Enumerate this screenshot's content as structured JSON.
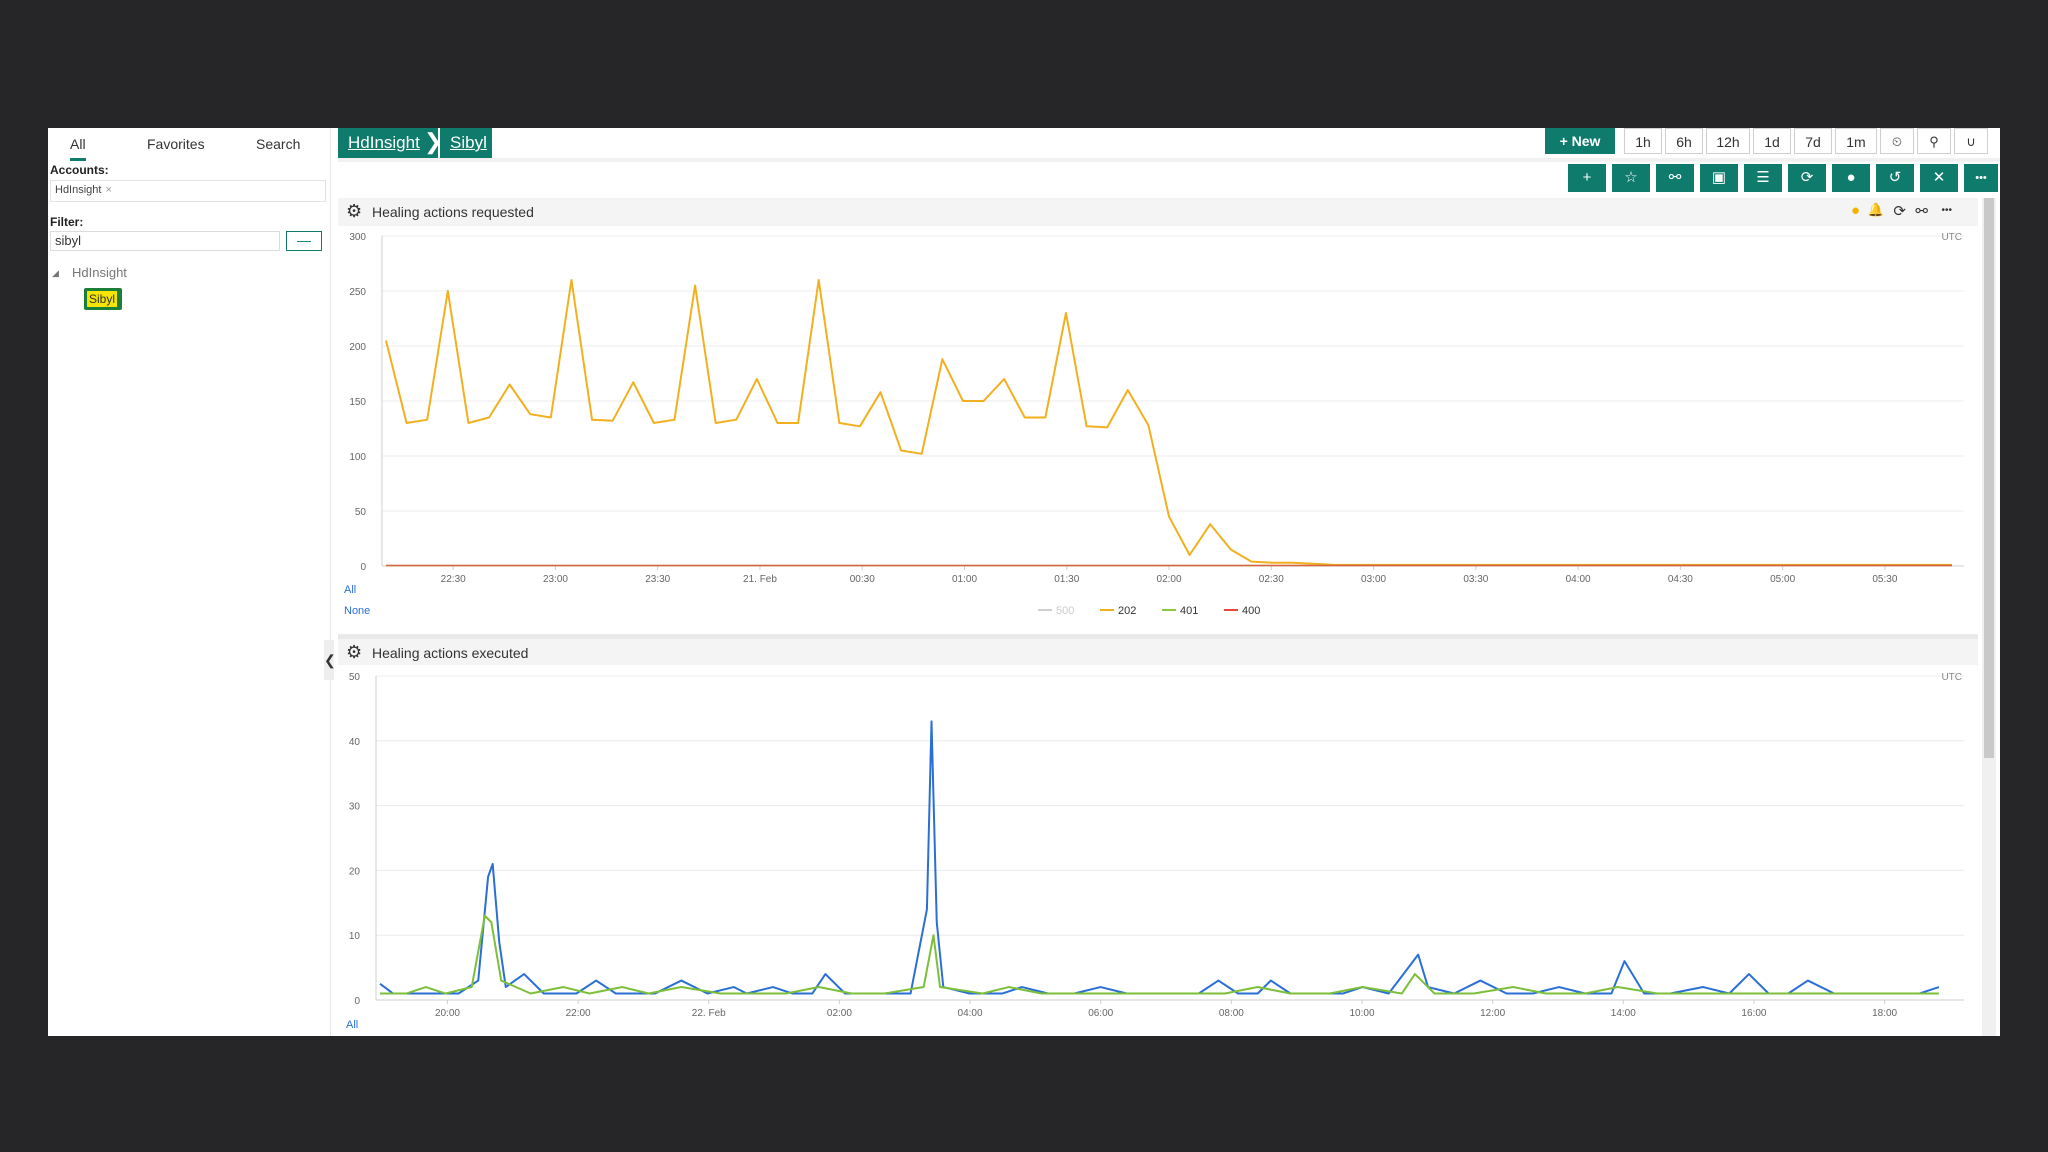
{
  "left_panel": {
    "tabs": [
      "All",
      "Favorites",
      "Search"
    ],
    "accounts_label": "Accounts:",
    "account_chip": "HdInsight",
    "chip_close": "×",
    "filter_label": "Filter:",
    "filter_value": "sibyl",
    "filter_button": "—",
    "tree_caret": "◢",
    "tree_parent": "HdInsight",
    "tree_child": "Sibyl",
    "collapse_glyph": "❮"
  },
  "breadcrumb": {
    "items": [
      "HdInsight",
      "Sibyl"
    ],
    "separator": "❯"
  },
  "toolbar": {
    "new_label": "+ New",
    "ranges": [
      "1h",
      "6h",
      "12h",
      "1d",
      "7d",
      "1m"
    ],
    "icons": [
      {
        "name": "clock-icon",
        "glyph": "⏲"
      },
      {
        "name": "pin-icon",
        "glyph": "⚲"
      },
      {
        "name": "magnet-icon",
        "glyph": "∪"
      }
    ],
    "actions": [
      {
        "name": "add-icon",
        "glyph": "+"
      },
      {
        "name": "star-icon",
        "glyph": "☆"
      },
      {
        "name": "link-icon",
        "glyph": "⚯"
      },
      {
        "name": "save-icon",
        "glyph": "▣"
      },
      {
        "name": "filter-icon",
        "glyph": "☰"
      },
      {
        "name": "refresh-icon",
        "glyph": "⟳"
      },
      {
        "name": "record-icon",
        "glyph": "●"
      },
      {
        "name": "undo-icon",
        "glyph": "↺"
      },
      {
        "name": "collapse-icon",
        "glyph": "✕"
      },
      {
        "name": "more-icon",
        "glyph": "•••"
      }
    ]
  },
  "panel_head_icons": [
    {
      "name": "warning-icon",
      "glyph": "●"
    },
    {
      "name": "bell-icon",
      "glyph": "🔔"
    },
    {
      "name": "refresh-icon",
      "glyph": "⟳"
    },
    {
      "name": "link-icon",
      "glyph": "⚯"
    },
    {
      "name": "more-icon",
      "glyph": "•••"
    }
  ],
  "panel_gear": "⚙",
  "panels": [
    {
      "title": "Healing actions requested",
      "tz": "UTC",
      "legend_all": "All",
      "legend_none": "None"
    },
    {
      "title": "Healing actions executed",
      "tz": "UTC",
      "legend_all": "All"
    }
  ],
  "colors": {
    "accent": "#0f7b6c",
    "s202": "#f2b01e",
    "s401": "#8dc63f",
    "s400": "#e8463c",
    "s500": "#cfcfcf",
    "blue": "#2a6fd6",
    "green": "#7cbf3a"
  },
  "chart_data": [
    {
      "type": "line",
      "title": "Healing actions requested",
      "ylim": [
        0,
        300
      ],
      "yticks": [
        0,
        50,
        100,
        150,
        200,
        250,
        300
      ],
      "xticks": [
        "22:30",
        "23:00",
        "23:30",
        "21. Feb",
        "00:30",
        "01:00",
        "01:30",
        "02:00",
        "02:30",
        "03:00",
        "03:30",
        "04:00",
        "04:30",
        "05:00",
        "05:30"
      ],
      "xrange": [
        0,
        76
      ],
      "series": [
        {
          "name": "500",
          "color": "#cfcfcf",
          "values": []
        },
        {
          "name": "202",
          "color": "#f2b01e",
          "values": [
            205,
            130,
            133,
            250,
            130,
            135,
            165,
            138,
            135,
            260,
            133,
            132,
            167,
            130,
            133,
            255,
            130,
            133,
            170,
            130,
            130,
            260,
            130,
            127,
            158,
            105,
            102,
            188,
            150,
            150,
            170,
            135,
            135,
            230,
            127,
            126,
            160,
            128,
            45,
            10,
            38,
            15,
            4,
            3,
            3,
            2,
            1,
            1,
            1,
            1,
            1,
            1,
            1,
            1,
            1,
            1,
            1,
            1,
            1,
            1,
            1,
            1,
            1,
            1,
            1,
            1,
            1,
            1,
            1,
            1,
            1,
            1,
            1,
            1,
            1,
            1,
            1
          ]
        },
        {
          "name": "401",
          "color": "#8dc63f",
          "values": []
        },
        {
          "name": "400",
          "color": "#e8463c",
          "values": []
        }
      ]
    },
    {
      "type": "line",
      "title": "Healing actions executed",
      "ylim": [
        0,
        50
      ],
      "yticks": [
        0,
        10,
        20,
        30,
        40,
        50
      ],
      "xticks": [
        "20:00",
        "22:00",
        "22. Feb",
        "02:00",
        "04:00",
        "06:00",
        "08:00",
        "10:00",
        "12:00",
        "14:00",
        "16:00",
        "18:00"
      ],
      "xrange": [
        0,
        24
      ],
      "series": [
        {
          "name": "blue",
          "color": "#2a6fd6",
          "points": [
            [
              0,
              2.5
            ],
            [
              0.2,
              1
            ],
            [
              1.2,
              1
            ],
            [
              1.5,
              3
            ],
            [
              1.65,
              19
            ],
            [
              1.72,
              21
            ],
            [
              1.82,
              9
            ],
            [
              1.92,
              2
            ],
            [
              2.2,
              4
            ],
            [
              2.5,
              1
            ],
            [
              3,
              1
            ],
            [
              3.3,
              3
            ],
            [
              3.6,
              1
            ],
            [
              4.2,
              1
            ],
            [
              4.6,
              3
            ],
            [
              5,
              1
            ],
            [
              5.4,
              2
            ],
            [
              5.6,
              1
            ],
            [
              6,
              2
            ],
            [
              6.3,
              1
            ],
            [
              6.6,
              1
            ],
            [
              6.8,
              4
            ],
            [
              7.1,
              1
            ],
            [
              7.5,
              1
            ],
            [
              7.8,
              1
            ],
            [
              8.1,
              1
            ],
            [
              8.35,
              14
            ],
            [
              8.42,
              43
            ],
            [
              8.5,
              12
            ],
            [
              8.6,
              2
            ],
            [
              9,
              1
            ],
            [
              9.3,
              1
            ],
            [
              9.5,
              1
            ],
            [
              9.8,
              2
            ],
            [
              10.2,
              1
            ],
            [
              10.6,
              1
            ],
            [
              11,
              2
            ],
            [
              11.4,
              1
            ],
            [
              12,
              1
            ],
            [
              12.5,
              1
            ],
            [
              12.8,
              3
            ],
            [
              13.1,
              1
            ],
            [
              13.4,
              1
            ],
            [
              13.6,
              3
            ],
            [
              13.9,
              1
            ],
            [
              14.3,
              1
            ],
            [
              14.7,
              1
            ],
            [
              15,
              2
            ],
            [
              15.4,
              1
            ],
            [
              15.7,
              5
            ],
            [
              15.85,
              7
            ],
            [
              16,
              2
            ],
            [
              16.4,
              1
            ],
            [
              16.8,
              3
            ],
            [
              17.2,
              1
            ],
            [
              17.6,
              1
            ],
            [
              18,
              2
            ],
            [
              18.4,
              1
            ],
            [
              18.8,
              1
            ],
            [
              19,
              6
            ],
            [
              19.3,
              1
            ],
            [
              19.7,
              1
            ],
            [
              20.2,
              2
            ],
            [
              20.6,
              1
            ],
            [
              20.9,
              4
            ],
            [
              21.2,
              1
            ],
            [
              21.5,
              1
            ],
            [
              21.8,
              3
            ],
            [
              22.2,
              1
            ],
            [
              22.7,
              1
            ],
            [
              23.1,
              1
            ],
            [
              23.5,
              1
            ],
            [
              23.8,
              2
            ]
          ]
        },
        {
          "name": "green",
          "color": "#7cbf3a",
          "points": [
            [
              0,
              1
            ],
            [
              0.4,
              1
            ],
            [
              0.7,
              2
            ],
            [
              1,
              1
            ],
            [
              1.4,
              2
            ],
            [
              1.6,
              13
            ],
            [
              1.7,
              12
            ],
            [
              1.85,
              3
            ],
            [
              2.3,
              1
            ],
            [
              2.8,
              2
            ],
            [
              3.2,
              1
            ],
            [
              3.7,
              2
            ],
            [
              4.1,
              1
            ],
            [
              4.6,
              2
            ],
            [
              5.2,
              1
            ],
            [
              5.8,
              1
            ],
            [
              6.2,
              1
            ],
            [
              6.7,
              2
            ],
            [
              7.2,
              1
            ],
            [
              7.7,
              1
            ],
            [
              8.3,
              2
            ],
            [
              8.45,
              10
            ],
            [
              8.55,
              2
            ],
            [
              9.2,
              1
            ],
            [
              9.6,
              2
            ],
            [
              10.1,
              1
            ],
            [
              10.7,
              1
            ],
            [
              11.3,
              1
            ],
            [
              11.8,
              1
            ],
            [
              12.4,
              1
            ],
            [
              12.9,
              1
            ],
            [
              13.4,
              2
            ],
            [
              13.9,
              1
            ],
            [
              14.5,
              1
            ],
            [
              15,
              2
            ],
            [
              15.6,
              1
            ],
            [
              15.8,
              4
            ],
            [
              16.1,
              1
            ],
            [
              16.7,
              1
            ],
            [
              17.3,
              2
            ],
            [
              17.8,
              1
            ],
            [
              18.4,
              1
            ],
            [
              18.9,
              2
            ],
            [
              19.5,
              1
            ],
            [
              20.1,
              1
            ],
            [
              20.6,
              1
            ],
            [
              21.2,
              1
            ],
            [
              21.6,
              1
            ],
            [
              22.1,
              1
            ],
            [
              22.6,
              1
            ],
            [
              23.1,
              1
            ],
            [
              23.5,
              1
            ],
            [
              23.8,
              1
            ]
          ]
        }
      ]
    }
  ]
}
